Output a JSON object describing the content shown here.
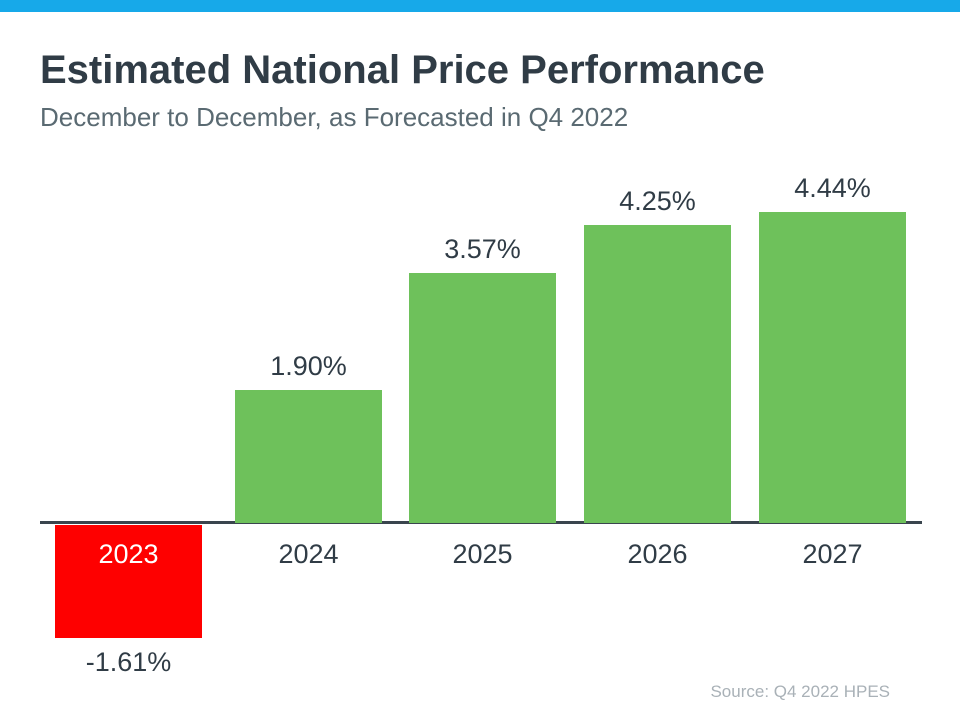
{
  "header": {
    "title": "Estimated National Price Performance",
    "subtitle": "December to December, as Forecasted in Q4 2022"
  },
  "chart_data": {
    "type": "bar",
    "title": "Estimated National Price Performance",
    "subtitle": "December to December, as Forecasted in Q4 2022",
    "categories": [
      "2023",
      "2024",
      "2025",
      "2026",
      "2027"
    ],
    "values": [
      -1.61,
      1.9,
      3.57,
      4.25,
      4.44
    ],
    "value_labels": [
      "-1.61%",
      "1.90%",
      "3.57%",
      "4.25%",
      "4.44%"
    ],
    "xlabel": "",
    "ylabel": "",
    "ylim": [
      -2,
      5
    ],
    "grid": false,
    "legend_position": "none",
    "axis_style": "x baseline only, no ticks, no y-axis labels",
    "bar_colors": {
      "positive": "#6ec15b",
      "negative": "#fe0000"
    },
    "negative_category_label_color": "#ffffff"
  },
  "footer": {
    "source_label": "Source: Q4 2022 HPES"
  },
  "colors": {
    "accent_bar": "#17a9e9",
    "positive_bar": "#6ec15b",
    "negative_bar": "#fe0000",
    "title_text": "#303c46",
    "subtitle_text": "#5a6a72",
    "axis_line": "#3a454e",
    "source_text": "#a9b1b7"
  }
}
